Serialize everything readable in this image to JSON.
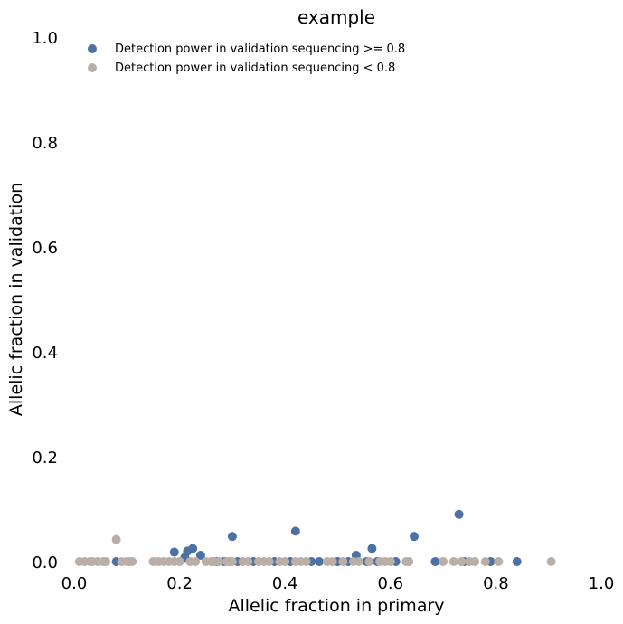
{
  "chart_data": {
    "type": "scatter",
    "title": "example",
    "xlabel": "Allelic fraction in primary",
    "ylabel": "Allelic fraction in validation",
    "xlim": [
      0.0,
      1.0
    ],
    "ylim": [
      0.0,
      1.0
    ],
    "xticks": [
      "0.0",
      "0.2",
      "0.4",
      "0.6",
      "0.8",
      "1.0"
    ],
    "yticks": [
      "0.0",
      "0.2",
      "0.4",
      "0.6",
      "0.8",
      "1.0"
    ],
    "grid": false,
    "legend_position": "top-left",
    "series": [
      {
        "name": "Detection power in validation sequencing >= 0.8",
        "color": "#4c72a4",
        "points": [
          {
            "x": 0.08,
            "y": 0.0
          },
          {
            "x": 0.19,
            "y": 0.018
          },
          {
            "x": 0.21,
            "y": 0.008
          },
          {
            "x": 0.215,
            "y": 0.02
          },
          {
            "x": 0.225,
            "y": 0.025
          },
          {
            "x": 0.24,
            "y": 0.012
          },
          {
            "x": 0.27,
            "y": 0.0
          },
          {
            "x": 0.285,
            "y": 0.0
          },
          {
            "x": 0.3,
            "y": 0.048
          },
          {
            "x": 0.31,
            "y": 0.0
          },
          {
            "x": 0.34,
            "y": 0.0
          },
          {
            "x": 0.38,
            "y": 0.0
          },
          {
            "x": 0.41,
            "y": 0.0
          },
          {
            "x": 0.42,
            "y": 0.058
          },
          {
            "x": 0.45,
            "y": 0.0
          },
          {
            "x": 0.465,
            "y": 0.0
          },
          {
            "x": 0.5,
            "y": 0.0
          },
          {
            "x": 0.52,
            "y": 0.0
          },
          {
            "x": 0.535,
            "y": 0.012
          },
          {
            "x": 0.555,
            "y": 0.0
          },
          {
            "x": 0.565,
            "y": 0.025
          },
          {
            "x": 0.575,
            "y": 0.0
          },
          {
            "x": 0.61,
            "y": 0.0
          },
          {
            "x": 0.645,
            "y": 0.048
          },
          {
            "x": 0.685,
            "y": 0.0
          },
          {
            "x": 0.73,
            "y": 0.09
          },
          {
            "x": 0.74,
            "y": 0.0
          },
          {
            "x": 0.79,
            "y": 0.0
          },
          {
            "x": 0.84,
            "y": 0.0
          }
        ]
      },
      {
        "name": "Detection power in validation sequencing < 0.8",
        "color": "#bbaea6",
        "points": [
          {
            "x": 0.01,
            "y": 0.0
          },
          {
            "x": 0.02,
            "y": 0.0
          },
          {
            "x": 0.03,
            "y": 0.0
          },
          {
            "x": 0.035,
            "y": 0.0
          },
          {
            "x": 0.045,
            "y": 0.0
          },
          {
            "x": 0.055,
            "y": 0.0
          },
          {
            "x": 0.06,
            "y": 0.0
          },
          {
            "x": 0.08,
            "y": 0.042
          },
          {
            "x": 0.09,
            "y": 0.0
          },
          {
            "x": 0.1,
            "y": 0.0
          },
          {
            "x": 0.105,
            "y": 0.0
          },
          {
            "x": 0.11,
            "y": 0.0
          },
          {
            "x": 0.15,
            "y": 0.0
          },
          {
            "x": 0.16,
            "y": 0.0
          },
          {
            "x": 0.17,
            "y": 0.0
          },
          {
            "x": 0.18,
            "y": 0.0
          },
          {
            "x": 0.19,
            "y": 0.0
          },
          {
            "x": 0.2,
            "y": 0.0
          },
          {
            "x": 0.22,
            "y": 0.0
          },
          {
            "x": 0.23,
            "y": 0.0
          },
          {
            "x": 0.25,
            "y": 0.0
          },
          {
            "x": 0.26,
            "y": 0.0
          },
          {
            "x": 0.265,
            "y": 0.0
          },
          {
            "x": 0.275,
            "y": 0.0
          },
          {
            "x": 0.29,
            "y": 0.0
          },
          {
            "x": 0.295,
            "y": 0.0
          },
          {
            "x": 0.3,
            "y": 0.0
          },
          {
            "x": 0.32,
            "y": 0.0
          },
          {
            "x": 0.33,
            "y": 0.0
          },
          {
            "x": 0.35,
            "y": 0.0
          },
          {
            "x": 0.36,
            "y": 0.0
          },
          {
            "x": 0.37,
            "y": 0.0
          },
          {
            "x": 0.39,
            "y": 0.0
          },
          {
            "x": 0.4,
            "y": 0.0
          },
          {
            "x": 0.42,
            "y": 0.0
          },
          {
            "x": 0.43,
            "y": 0.0
          },
          {
            "x": 0.44,
            "y": 0.0
          },
          {
            "x": 0.48,
            "y": 0.0
          },
          {
            "x": 0.49,
            "y": 0.0
          },
          {
            "x": 0.51,
            "y": 0.0
          },
          {
            "x": 0.53,
            "y": 0.0
          },
          {
            "x": 0.54,
            "y": 0.0
          },
          {
            "x": 0.56,
            "y": 0.0
          },
          {
            "x": 0.58,
            "y": 0.0
          },
          {
            "x": 0.59,
            "y": 0.0
          },
          {
            "x": 0.6,
            "y": 0.0
          },
          {
            "x": 0.63,
            "y": 0.0
          },
          {
            "x": 0.635,
            "y": 0.0
          },
          {
            "x": 0.7,
            "y": 0.0
          },
          {
            "x": 0.72,
            "y": 0.0
          },
          {
            "x": 0.735,
            "y": 0.0
          },
          {
            "x": 0.75,
            "y": 0.0
          },
          {
            "x": 0.76,
            "y": 0.0
          },
          {
            "x": 0.78,
            "y": 0.0
          },
          {
            "x": 0.805,
            "y": 0.0
          },
          {
            "x": 0.905,
            "y": 0.0
          }
        ]
      }
    ]
  }
}
